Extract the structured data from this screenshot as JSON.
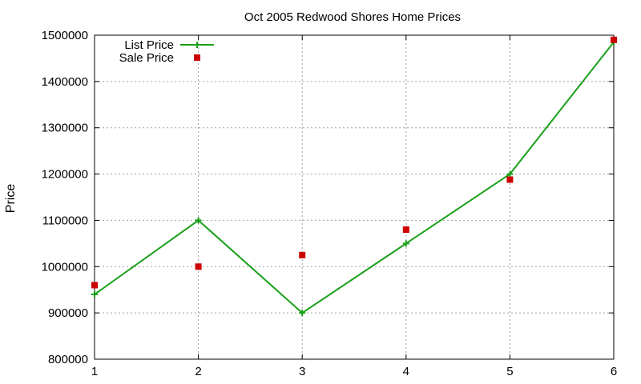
{
  "chart_data": {
    "type": "line",
    "title": "Oct 2005 Redwood Shores Home Prices",
    "xlabel": "",
    "ylabel": "Price",
    "xlim": [
      1,
      6
    ],
    "ylim": [
      800000,
      1500000
    ],
    "xticks": [
      "1",
      "2",
      "3",
      "4",
      "5",
      "6"
    ],
    "yticks": [
      "800000",
      "900000",
      "1000000",
      "1100000",
      "1200000",
      "1300000",
      "1400000",
      "1500000"
    ],
    "grid": true,
    "legend_position": "top-left",
    "series": [
      {
        "name": "List Price",
        "style": "line+crosses",
        "color": "#1aa01a",
        "x": [
          1,
          2,
          3,
          4,
          5,
          6
        ],
        "y": [
          940000,
          1100000,
          900000,
          1050000,
          1200000,
          1485000
        ]
      },
      {
        "name": "Sale Price",
        "style": "points-square",
        "color": "#cc0000",
        "x": [
          1,
          2,
          3,
          4,
          5,
          6
        ],
        "y": [
          960000,
          1000000,
          1025000,
          1080000,
          1188000,
          1490000
        ]
      }
    ]
  },
  "legend": {
    "list_label": "List Price",
    "sale_label": "Sale Price"
  }
}
